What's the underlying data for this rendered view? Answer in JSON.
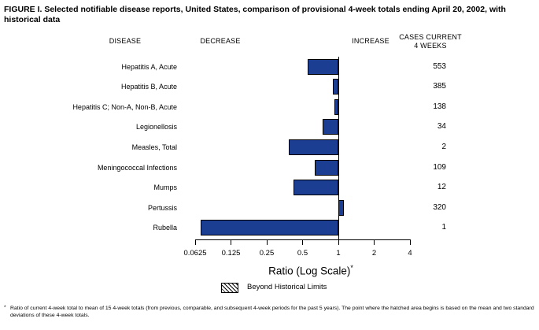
{
  "figure": {
    "title": "FIGURE I. Selected notifiable disease reports, United States, comparison of provisional 4-week totals ending April 20, 2002, with historical data",
    "footnote_marker": "*",
    "footnote": "Ratio of current 4-week total to mean of 15 4-week totals (from previous, comparable, and subsequent 4-week periods for the past 5 years). The point where the hatched area begins is based on the mean and two standard deviations of these 4-week totals."
  },
  "headers": {
    "disease": "DISEASE",
    "decrease": "DECREASE",
    "increase": "INCREASE",
    "cases_line1": "CASES CURRENT",
    "cases_line2": "4 WEEKS"
  },
  "chart_data": {
    "type": "bar",
    "orientation": "horizontal",
    "scale": "log",
    "title": "Selected notifiable disease reports, United States, comparison of provisional 4-week totals ending April 20, 2002, with historical data",
    "xlabel": "Ratio (Log Scale)",
    "xlabel_superscript": "*",
    "axis": {
      "label": "Ratio (Log Scale)",
      "label_superscript": "*",
      "ticks": [
        0.0625,
        0.125,
        0.25,
        0.5,
        1,
        2,
        4
      ],
      "tick_labels": [
        "0.0625",
        "0.125",
        "0.25",
        "0.5",
        "1",
        "2",
        "4"
      ],
      "baseline": 1,
      "xlim": [
        0.0625,
        4
      ],
      "grid": false
    },
    "legend": {
      "swatch": "hatched",
      "label": "Beyond Historical Limits",
      "position": "bottom"
    },
    "bar_color": "#1b3e93",
    "bar_border_color": "#000000",
    "rows": [
      {
        "disease": "Hepatitis A, Acute",
        "ratio": 0.55,
        "cases": "553",
        "beyond_limits": false
      },
      {
        "disease": "Hepatitis B, Acute",
        "ratio": 0.9,
        "cases": "385",
        "beyond_limits": false
      },
      {
        "disease": "Hepatitis C; Non-A, Non-B, Acute",
        "ratio": 0.92,
        "cases": "138",
        "beyond_limits": false
      },
      {
        "disease": "Legionellosis",
        "ratio": 0.74,
        "cases": "34",
        "beyond_limits": false
      },
      {
        "disease": "Measles, Total",
        "ratio": 0.38,
        "cases": "2",
        "beyond_limits": false
      },
      {
        "disease": "Meningococcal Infections",
        "ratio": 0.63,
        "cases": "109",
        "beyond_limits": false
      },
      {
        "disease": "Mumps",
        "ratio": 0.42,
        "cases": "12",
        "beyond_limits": false
      },
      {
        "disease": "Pertussis",
        "ratio": 1.12,
        "cases": "320",
        "beyond_limits": false
      },
      {
        "disease": "Rubella",
        "ratio": 0.07,
        "cases": "1",
        "beyond_limits": false
      }
    ]
  }
}
